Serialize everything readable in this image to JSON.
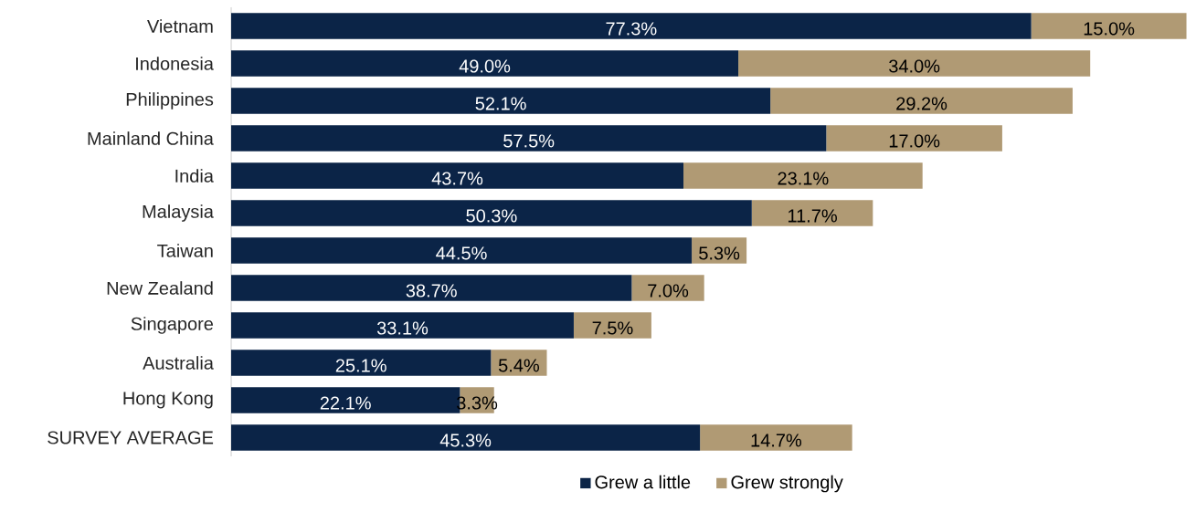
{
  "chart_data": {
    "type": "bar",
    "orientation": "horizontal",
    "stacked": true,
    "legend": "bottom",
    "categories": [
      "Vietnam",
      "Indonesia",
      "Philippines",
      "Mainland China",
      "India",
      "Malaysia",
      "Taiwan",
      "New Zealand",
      "Singapore",
      "Australia",
      "Hong Kong",
      "SURVEY AVERAGE"
    ],
    "series": [
      {
        "name": "Grew a little",
        "color": "#0b2447",
        "values": [
          77.3,
          49.0,
          52.1,
          57.5,
          43.7,
          50.3,
          44.5,
          38.7,
          33.1,
          25.1,
          22.1,
          45.3
        ],
        "value_labels": [
          "77.3%",
          "49.0%",
          "52.1%",
          "57.5%",
          "43.7%",
          "50.3%",
          "44.5%",
          "38.7%",
          "33.1%",
          "25.1%",
          "22.1%",
          "45.3%"
        ]
      },
      {
        "name": "Grew strongly",
        "color": "#b09a74",
        "values": [
          15.0,
          34.0,
          29.2,
          17.0,
          23.1,
          11.7,
          5.3,
          7.0,
          7.5,
          5.4,
          3.3,
          14.7
        ],
        "value_labels": [
          "15.0%",
          "34.0%",
          "29.2%",
          "17.0%",
          "23.1%",
          "11.7%",
          "5.3%",
          "7.0%",
          "7.5%",
          "5.4%",
          "3.3%",
          "14.7%"
        ]
      }
    ]
  }
}
